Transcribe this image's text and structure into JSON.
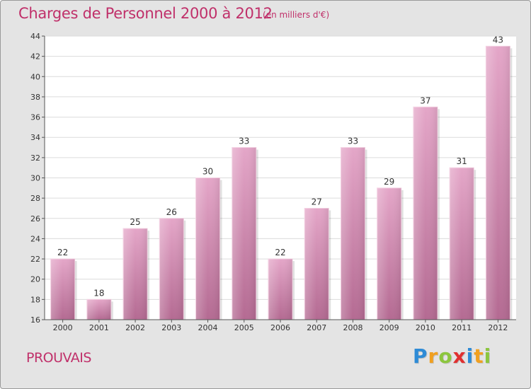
{
  "title": "Charges de Personnel 2000 à 2012",
  "subtitle": "(en milliers d'€)",
  "commune": "PROUVAIS",
  "brand": {
    "letters": [
      "P",
      "r",
      "o",
      "x",
      "i",
      "t",
      "i"
    ],
    "colors": [
      "#2e8bd6",
      "#f0a020",
      "#8cc63e",
      "#e03030",
      "#2e8bd6",
      "#f0a020",
      "#8cc63e"
    ]
  },
  "chart_data": {
    "type": "bar",
    "categories": [
      "2000",
      "2001",
      "2002",
      "2003",
      "2004",
      "2005",
      "2006",
      "2007",
      "2008",
      "2009",
      "2010",
      "2011",
      "2012"
    ],
    "values": [
      22,
      18,
      25,
      26,
      30,
      33,
      22,
      27,
      33,
      29,
      37,
      31,
      43
    ],
    "ylim": [
      16,
      44
    ],
    "yticks": [
      16,
      18,
      20,
      22,
      24,
      26,
      28,
      30,
      32,
      34,
      36,
      38,
      40,
      42,
      44
    ],
    "grid": true,
    "bar_color": "#d67eaa",
    "data_labels": true
  }
}
